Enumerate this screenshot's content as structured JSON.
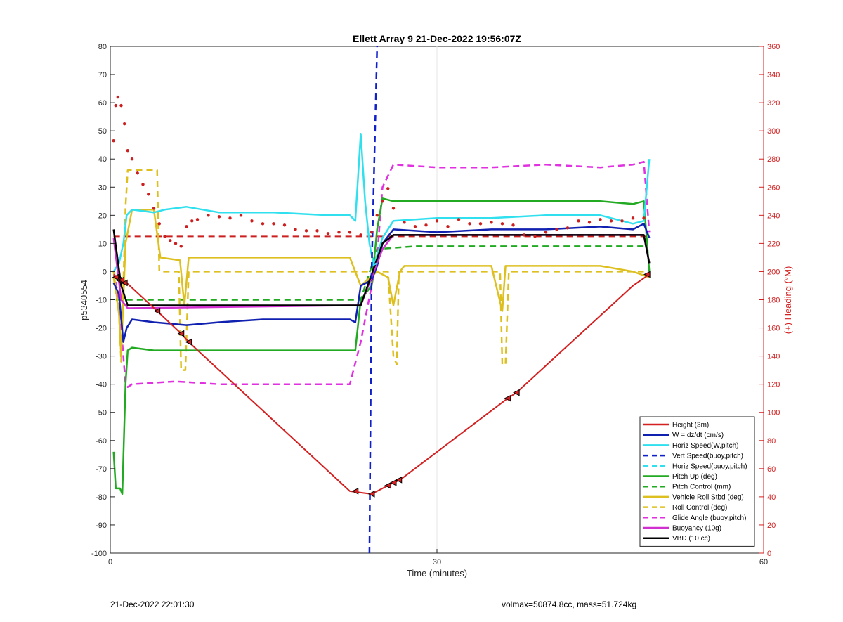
{
  "chart_data": {
    "type": "line",
    "title": "Ellett Array 9 21-Dec-2022 19:56:07Z",
    "xlabel": "Time (minutes)",
    "ylabel_left": "p5340554",
    "ylabel_right": "(+) Heading (°M)",
    "xlim": [
      0,
      60
    ],
    "ylim_left": [
      -100,
      80
    ],
    "ylim_right": [
      0,
      360
    ],
    "x_ticks": [
      0,
      30,
      60
    ],
    "y_ticks_left": [
      80,
      70,
      60,
      50,
      40,
      30,
      20,
      10,
      0,
      -10,
      -20,
      -30,
      -40,
      -50,
      -60,
      -70,
      -80,
      -90,
      -100
    ],
    "y_ticks_right": [
      360,
      340,
      320,
      300,
      280,
      260,
      240,
      220,
      200,
      180,
      160,
      140,
      120,
      100,
      80,
      60,
      40,
      20,
      0
    ],
    "grid": "x-only",
    "legend_position": "bottom-right",
    "colors": {
      "height": "#d42020",
      "w": "#1020b0",
      "horiz_speed": "#30e0ee",
      "vert_speed_buoy": "#1020c8",
      "horiz_speed_buoy": "#30e0ee",
      "pitch_up": "#22aa22",
      "pitch_control": "#22aa22",
      "roll": "#ddc020",
      "roll_control": "#ddc020",
      "glide_angle": "#e030e0",
      "buoyancy": "#d030d0",
      "vbd": "#000000",
      "heading": "#cc2020"
    },
    "series": [
      {
        "name": "Height (3m)",
        "key": "height",
        "style": "solid",
        "x": [
          0.3,
          1.0,
          1.5,
          4.3,
          6.5,
          7.2,
          22.0,
          24.0,
          25.5,
          26.0,
          26.6,
          36.5,
          37.3,
          48.0,
          49.5
        ],
        "y": [
          -1,
          -3,
          -4,
          -14,
          -22,
          -25,
          -78,
          -79,
          -76,
          -75,
          -74,
          -45,
          -43,
          -5,
          -1
        ]
      },
      {
        "name": "W = dz/dt (cm/s)",
        "key": "w",
        "style": "solid",
        "x": [
          0.3,
          0.8,
          1.2,
          1.5,
          2.0,
          4.0,
          7.0,
          10.0,
          14.0,
          18.0,
          22.0,
          22.5,
          23.0,
          24.0,
          24.5,
          25.0,
          26.0,
          30.0,
          35.0,
          40.0,
          45.0,
          48.0,
          49.0,
          49.5
        ],
        "y": [
          -4,
          -8,
          -25,
          -20,
          -17,
          -18,
          -19,
          -18,
          -17,
          -17,
          -17,
          -18,
          -5,
          -3,
          2,
          10,
          15,
          14,
          15,
          15,
          16,
          15,
          17,
          12
        ]
      },
      {
        "name": "Horiz Speed(W,pitch)",
        "key": "horiz_speed",
        "style": "solid",
        "x": [
          0.3,
          0.8,
          1.2,
          1.5,
          2.0,
          4.0,
          5.0,
          7.0,
          10.0,
          15.0,
          20.0,
          22.0,
          22.5,
          23.0,
          23.4,
          23.8,
          24.2,
          25.0,
          26.0,
          30.0,
          35.0,
          40.0,
          45.0,
          48.0,
          49.0,
          49.5
        ],
        "y": [
          0,
          3,
          10,
          20,
          22,
          21,
          22,
          23,
          21,
          21,
          20,
          20,
          18,
          49,
          25,
          10,
          2,
          12,
          18,
          19,
          19,
          20,
          20,
          17,
          18,
          40
        ]
      },
      {
        "name": "Vert Speed(buoy,pitch)",
        "key": "vert_speed_buoy",
        "style": "dashed",
        "x": [
          23.8,
          24.0,
          24.5
        ],
        "y": [
          -100,
          0,
          80
        ]
      },
      {
        "name": "Horiz Speed(buoy,pitch)",
        "key": "horiz_speed_buoy",
        "style": "dashed",
        "x": [
          24.0,
          24.5
        ],
        "y": [
          2,
          3
        ]
      },
      {
        "name": "Pitch Up (deg)",
        "key": "pitch_up",
        "style": "solid",
        "x": [
          0.3,
          0.5,
          0.9,
          1.1,
          1.4,
          1.6,
          2.0,
          4.0,
          7.0,
          15.0,
          22.0,
          22.5,
          23.0,
          24.0,
          24.5,
          25.0,
          26.0,
          30.0,
          35.0,
          40.0,
          45.0,
          48.0,
          49.0,
          49.5
        ],
        "y": [
          -64,
          -77,
          -77,
          -79,
          -40,
          -28,
          -27,
          -28,
          -28,
          -28,
          -28,
          -28,
          -10,
          -5,
          15,
          26,
          25,
          25,
          25,
          25,
          25,
          24,
          25,
          0
        ]
      },
      {
        "name": "Pitch Control (mm)",
        "key": "pitch_control",
        "style": "dashed",
        "x": [
          0.5,
          1.0,
          1.5,
          22.0,
          23.0,
          24.5,
          28.0,
          49.0
        ],
        "y": [
          -10,
          -10,
          -10,
          -10,
          -10,
          8,
          9,
          9
        ]
      },
      {
        "name": "Vehicle Roll Stbd (deg)",
        "key": "roll",
        "style": "solid",
        "x": [
          0.3,
          0.8,
          1.0,
          1.4,
          2.0,
          4.0,
          4.6,
          6.4,
          6.8,
          7.2,
          10.0,
          15.0,
          20.0,
          22.0,
          23.0,
          24.5,
          25.5,
          26.0,
          26.6,
          27.0,
          30.0,
          35.0,
          36.0,
          36.3,
          36.6,
          37.0,
          45.0,
          48.0,
          49.5
        ],
        "y": [
          0,
          -15,
          -30,
          10,
          22,
          22,
          5,
          4,
          -12,
          5,
          5,
          5,
          5,
          5,
          -5,
          0,
          -2,
          -12,
          0,
          2,
          2,
          2,
          -14,
          2,
          2,
          2,
          2,
          0,
          -2
        ]
      },
      {
        "name": "Roll Control (deg)",
        "key": "roll_control",
        "style": "dashed",
        "x": [
          0.3,
          0.8,
          1.0,
          1.4,
          1.6,
          4.3,
          4.5,
          6.3,
          6.5,
          6.9,
          7.2,
          22.0,
          23.0,
          25.5,
          26.0,
          26.3,
          26.5,
          27.0,
          35.8,
          36.0,
          36.3,
          36.6,
          49.0
        ],
        "y": [
          -2,
          -15,
          -32,
          23,
          36,
          36,
          0,
          0,
          -35,
          -35,
          0,
          0,
          0,
          0,
          -30,
          -33,
          0,
          0,
          0,
          -33,
          -33,
          0,
          0
        ]
      },
      {
        "name": "Glide Angle (buoy,pitch)",
        "key": "glide_angle",
        "style": "dashed",
        "x": [
          0.3,
          0.8,
          1.4,
          1.6,
          2.0,
          6.0,
          10.0,
          15.0,
          20.0,
          22.0,
          23.0,
          24.0,
          24.5,
          25.0,
          26.0,
          30.0,
          35.0,
          40.0,
          45.0,
          48.0,
          49.0,
          49.5
        ],
        "y": [
          0,
          -10,
          -40,
          -41,
          -40,
          -39,
          -40,
          -40,
          -40,
          -40,
          -25,
          -5,
          5,
          30,
          38,
          37,
          37,
          38,
          37,
          38,
          39,
          14
        ]
      },
      {
        "name": "Buoyancy (10g)",
        "key": "buoyancy",
        "style": "solid",
        "x": [
          0.3,
          1.0,
          1.6,
          22.0,
          23.0,
          25.0,
          26.0,
          49.0,
          49.5
        ],
        "y": [
          12,
          -10,
          -13,
          -12,
          -12,
          8,
          13,
          13,
          3
        ]
      },
      {
        "name": "VBD (10 cc)",
        "key": "vbd",
        "style": "solid",
        "x": [
          0.3,
          1.0,
          1.6,
          22.0,
          23.0,
          25.0,
          26.0,
          49.0,
          49.5
        ],
        "y": [
          15,
          -5,
          -12,
          -12,
          -12,
          10,
          13,
          13,
          3
        ]
      }
    ],
    "heading_series": {
      "name": "Heading (°M)",
      "axis": "right",
      "style": "dots",
      "x": [
        0.3,
        0.5,
        0.7,
        1.0,
        1.3,
        1.6,
        2.0,
        2.5,
        3.0,
        3.5,
        4.0,
        4.5,
        5.0,
        5.5,
        6.0,
        6.5,
        7.0,
        7.5,
        8.0,
        9.0,
        10.0,
        11.0,
        12.0,
        13.0,
        14.0,
        15.0,
        16.0,
        17.0,
        18.0,
        19.0,
        20.0,
        21.0,
        22.0,
        23.0,
        24.0,
        24.5,
        25.0,
        25.5,
        26.0,
        27.0,
        28.0,
        29.0,
        30.0,
        31.0,
        32.0,
        33.0,
        34.0,
        35.0,
        36.0,
        37.0,
        38.0,
        39.0,
        40.0,
        41.0,
        42.0,
        43.0,
        44.0,
        45.0,
        46.0,
        47.0,
        48.0,
        49.0
      ],
      "y": [
        293,
        318,
        324,
        318,
        305,
        286,
        280,
        270,
        262,
        255,
        245,
        234,
        225,
        222,
        220,
        218,
        232,
        236,
        237,
        240,
        239,
        238,
        240,
        236,
        234,
        234,
        233,
        230,
        229,
        229,
        227,
        228,
        228,
        226,
        228,
        240,
        250,
        259,
        245,
        235,
        232,
        233,
        236,
        232,
        237,
        234,
        234,
        235,
        234,
        233,
        226,
        225,
        228,
        230,
        231,
        236,
        235,
        237,
        236,
        236,
        238,
        238
      ]
    },
    "heading_reference": {
      "name": "Heading target",
      "axis": "right",
      "style": "dashed",
      "value": 225,
      "x": [
        0.3,
        49.5
      ]
    },
    "markers": {
      "x": [
        0.5,
        0.8,
        1.0,
        1.3,
        4.3,
        6.5,
        7.2,
        22.5,
        24.0,
        25.5,
        26.0,
        26.5,
        36.5,
        37.3,
        49.3
      ],
      "y": [
        -2,
        -3,
        -3,
        -4,
        -14,
        -22,
        -25,
        -78,
        -79,
        -76,
        -75,
        -74,
        -45,
        -43,
        -1
      ]
    }
  },
  "footer": {
    "left": "21-Dec-2022 22:01:30",
    "right": "volmax=50874.8cc, mass=51.724kg"
  }
}
